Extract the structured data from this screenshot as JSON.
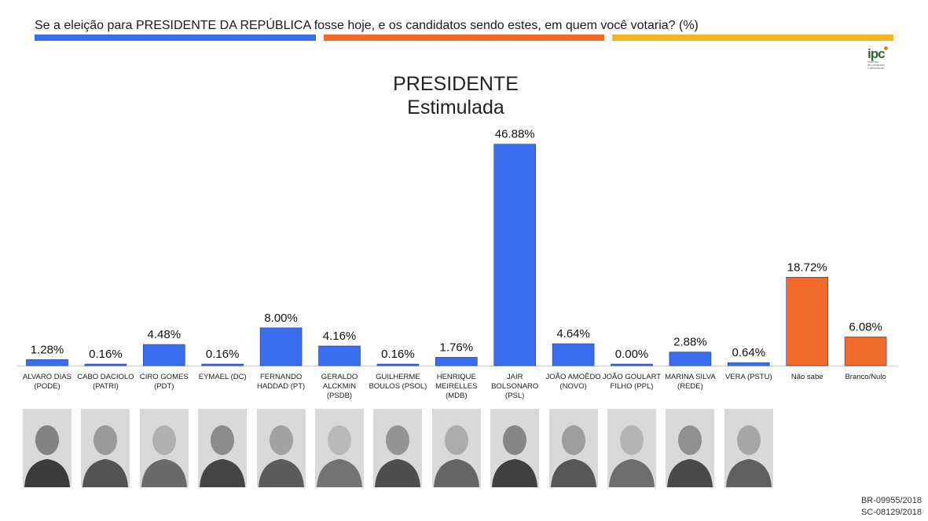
{
  "header": {
    "question": "Se a eleição para PRESIDENTE DA REPÚBLICA fosse hoje, e os candidatos sendo estes, em quem você votaria? (%)",
    "stripe_colors": [
      "#3a6ef0",
      "#f06a2c",
      "#f5b21c"
    ]
  },
  "logo": {
    "mark": "ipc",
    "sub": [
      "Instituto",
      "de pesquisa",
      "Catarinense"
    ]
  },
  "chart_data": {
    "type": "bar",
    "title": "PRESIDENTE",
    "subtitle": "Estimulada",
    "categories": [
      [
        "ALVARO DIAS",
        "(PODE)"
      ],
      [
        "CABO DACIOLO",
        "(PATRI)"
      ],
      [
        "CIRO GOMES",
        "(PDT)"
      ],
      [
        "EYMAEL (DC)"
      ],
      [
        "FERNANDO",
        "HADDAD (PT)"
      ],
      [
        "GERALDO",
        "ALCKMIN",
        "(PSDB)"
      ],
      [
        "GUILHERME",
        "BOULOS (PSOL)"
      ],
      [
        "HENRIQUE",
        "MEIRELLES",
        "(MDB)"
      ],
      [
        "JAIR",
        "BOLSONARO",
        "(PSL)"
      ],
      [
        "JOÃO AMOÊDO",
        "(NOVO)"
      ],
      [
        "JOÃO GOULART",
        "FILHO (PPL)"
      ],
      [
        "MARINA SILVA",
        "(REDE)"
      ],
      [
        "VERA (PSTU)"
      ],
      [
        "Não sabe"
      ],
      [
        "Branco/Nulo"
      ]
    ],
    "values": [
      1.28,
      0.16,
      4.48,
      0.16,
      8.0,
      4.16,
      0.16,
      1.76,
      46.88,
      4.64,
      0.0,
      2.88,
      0.64,
      18.72,
      6.08
    ],
    "value_labels": [
      "1.28%",
      "0.16%",
      "4.48%",
      "0.16%",
      "8.00%",
      "4.16%",
      "0.16%",
      "1.76%",
      "46.88%",
      "4.64%",
      "0.00%",
      "2.88%",
      "0.64%",
      "18.72%",
      "6.08%"
    ],
    "colors": [
      "#3a6ef0",
      "#3a6ef0",
      "#3a6ef0",
      "#3a6ef0",
      "#3a6ef0",
      "#3a6ef0",
      "#3a6ef0",
      "#3a6ef0",
      "#3a6ef0",
      "#3a6ef0",
      "#3a6ef0",
      "#3a6ef0",
      "#3a6ef0",
      "#f06a2c",
      "#f06a2c"
    ],
    "ylim": [
      0,
      50
    ],
    "grid": false,
    "legend": "none"
  },
  "photos": [
    "candidate-photo",
    "candidate-photo",
    "candidate-photo",
    "candidate-photo",
    "candidate-photo",
    "candidate-photo",
    "candidate-photo",
    "candidate-photo",
    "candidate-photo",
    "candidate-photo",
    "candidate-photo",
    "candidate-photo",
    "candidate-photo"
  ],
  "footer": {
    "codes": [
      "BR-09955/2018",
      "SC-08129/2018"
    ]
  }
}
